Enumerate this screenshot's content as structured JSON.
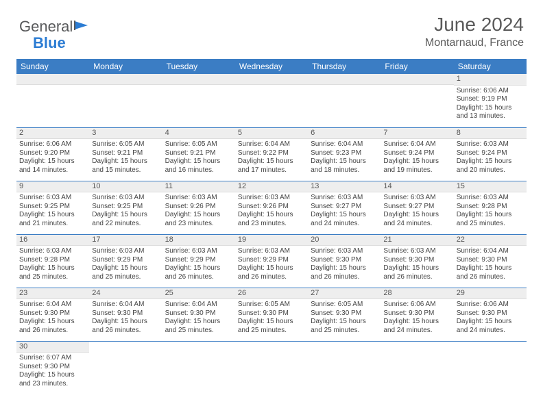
{
  "logo": {
    "word1": "General",
    "word2": "Blue"
  },
  "title": "June 2024",
  "location": "Montarnaud, France",
  "colors": {
    "header_bg": "#3b7dc4",
    "header_text": "#ffffff",
    "daybar_bg": "#eeeeee",
    "row_border": "#3b7dc4",
    "logo_gray": "#58595b",
    "logo_blue": "#2b7cd3",
    "text": "#444444"
  },
  "daysOfWeek": [
    "Sunday",
    "Monday",
    "Tuesday",
    "Wednesday",
    "Thursday",
    "Friday",
    "Saturday"
  ],
  "weeks": [
    [
      null,
      null,
      null,
      null,
      null,
      null,
      {
        "n": "1",
        "sr": "Sunrise: 6:06 AM",
        "ss": "Sunset: 9:19 PM",
        "d1": "Daylight: 15 hours",
        "d2": "and 13 minutes."
      }
    ],
    [
      {
        "n": "2",
        "sr": "Sunrise: 6:06 AM",
        "ss": "Sunset: 9:20 PM",
        "d1": "Daylight: 15 hours",
        "d2": "and 14 minutes."
      },
      {
        "n": "3",
        "sr": "Sunrise: 6:05 AM",
        "ss": "Sunset: 9:21 PM",
        "d1": "Daylight: 15 hours",
        "d2": "and 15 minutes."
      },
      {
        "n": "4",
        "sr": "Sunrise: 6:05 AM",
        "ss": "Sunset: 9:21 PM",
        "d1": "Daylight: 15 hours",
        "d2": "and 16 minutes."
      },
      {
        "n": "5",
        "sr": "Sunrise: 6:04 AM",
        "ss": "Sunset: 9:22 PM",
        "d1": "Daylight: 15 hours",
        "d2": "and 17 minutes."
      },
      {
        "n": "6",
        "sr": "Sunrise: 6:04 AM",
        "ss": "Sunset: 9:23 PM",
        "d1": "Daylight: 15 hours",
        "d2": "and 18 minutes."
      },
      {
        "n": "7",
        "sr": "Sunrise: 6:04 AM",
        "ss": "Sunset: 9:24 PM",
        "d1": "Daylight: 15 hours",
        "d2": "and 19 minutes."
      },
      {
        "n": "8",
        "sr": "Sunrise: 6:03 AM",
        "ss": "Sunset: 9:24 PM",
        "d1": "Daylight: 15 hours",
        "d2": "and 20 minutes."
      }
    ],
    [
      {
        "n": "9",
        "sr": "Sunrise: 6:03 AM",
        "ss": "Sunset: 9:25 PM",
        "d1": "Daylight: 15 hours",
        "d2": "and 21 minutes."
      },
      {
        "n": "10",
        "sr": "Sunrise: 6:03 AM",
        "ss": "Sunset: 9:25 PM",
        "d1": "Daylight: 15 hours",
        "d2": "and 22 minutes."
      },
      {
        "n": "11",
        "sr": "Sunrise: 6:03 AM",
        "ss": "Sunset: 9:26 PM",
        "d1": "Daylight: 15 hours",
        "d2": "and 23 minutes."
      },
      {
        "n": "12",
        "sr": "Sunrise: 6:03 AM",
        "ss": "Sunset: 9:26 PM",
        "d1": "Daylight: 15 hours",
        "d2": "and 23 minutes."
      },
      {
        "n": "13",
        "sr": "Sunrise: 6:03 AM",
        "ss": "Sunset: 9:27 PM",
        "d1": "Daylight: 15 hours",
        "d2": "and 24 minutes."
      },
      {
        "n": "14",
        "sr": "Sunrise: 6:03 AM",
        "ss": "Sunset: 9:27 PM",
        "d1": "Daylight: 15 hours",
        "d2": "and 24 minutes."
      },
      {
        "n": "15",
        "sr": "Sunrise: 6:03 AM",
        "ss": "Sunset: 9:28 PM",
        "d1": "Daylight: 15 hours",
        "d2": "and 25 minutes."
      }
    ],
    [
      {
        "n": "16",
        "sr": "Sunrise: 6:03 AM",
        "ss": "Sunset: 9:28 PM",
        "d1": "Daylight: 15 hours",
        "d2": "and 25 minutes."
      },
      {
        "n": "17",
        "sr": "Sunrise: 6:03 AM",
        "ss": "Sunset: 9:29 PM",
        "d1": "Daylight: 15 hours",
        "d2": "and 25 minutes."
      },
      {
        "n": "18",
        "sr": "Sunrise: 6:03 AM",
        "ss": "Sunset: 9:29 PM",
        "d1": "Daylight: 15 hours",
        "d2": "and 26 minutes."
      },
      {
        "n": "19",
        "sr": "Sunrise: 6:03 AM",
        "ss": "Sunset: 9:29 PM",
        "d1": "Daylight: 15 hours",
        "d2": "and 26 minutes."
      },
      {
        "n": "20",
        "sr": "Sunrise: 6:03 AM",
        "ss": "Sunset: 9:30 PM",
        "d1": "Daylight: 15 hours",
        "d2": "and 26 minutes."
      },
      {
        "n": "21",
        "sr": "Sunrise: 6:03 AM",
        "ss": "Sunset: 9:30 PM",
        "d1": "Daylight: 15 hours",
        "d2": "and 26 minutes."
      },
      {
        "n": "22",
        "sr": "Sunrise: 6:04 AM",
        "ss": "Sunset: 9:30 PM",
        "d1": "Daylight: 15 hours",
        "d2": "and 26 minutes."
      }
    ],
    [
      {
        "n": "23",
        "sr": "Sunrise: 6:04 AM",
        "ss": "Sunset: 9:30 PM",
        "d1": "Daylight: 15 hours",
        "d2": "and 26 minutes."
      },
      {
        "n": "24",
        "sr": "Sunrise: 6:04 AM",
        "ss": "Sunset: 9:30 PM",
        "d1": "Daylight: 15 hours",
        "d2": "and 26 minutes."
      },
      {
        "n": "25",
        "sr": "Sunrise: 6:04 AM",
        "ss": "Sunset: 9:30 PM",
        "d1": "Daylight: 15 hours",
        "d2": "and 25 minutes."
      },
      {
        "n": "26",
        "sr": "Sunrise: 6:05 AM",
        "ss": "Sunset: 9:30 PM",
        "d1": "Daylight: 15 hours",
        "d2": "and 25 minutes."
      },
      {
        "n": "27",
        "sr": "Sunrise: 6:05 AM",
        "ss": "Sunset: 9:30 PM",
        "d1": "Daylight: 15 hours",
        "d2": "and 25 minutes."
      },
      {
        "n": "28",
        "sr": "Sunrise: 6:06 AM",
        "ss": "Sunset: 9:30 PM",
        "d1": "Daylight: 15 hours",
        "d2": "and 24 minutes."
      },
      {
        "n": "29",
        "sr": "Sunrise: 6:06 AM",
        "ss": "Sunset: 9:30 PM",
        "d1": "Daylight: 15 hours",
        "d2": "and 24 minutes."
      }
    ],
    [
      {
        "n": "30",
        "sr": "Sunrise: 6:07 AM",
        "ss": "Sunset: 9:30 PM",
        "d1": "Daylight: 15 hours",
        "d2": "and 23 minutes."
      },
      null,
      null,
      null,
      null,
      null,
      null
    ]
  ]
}
